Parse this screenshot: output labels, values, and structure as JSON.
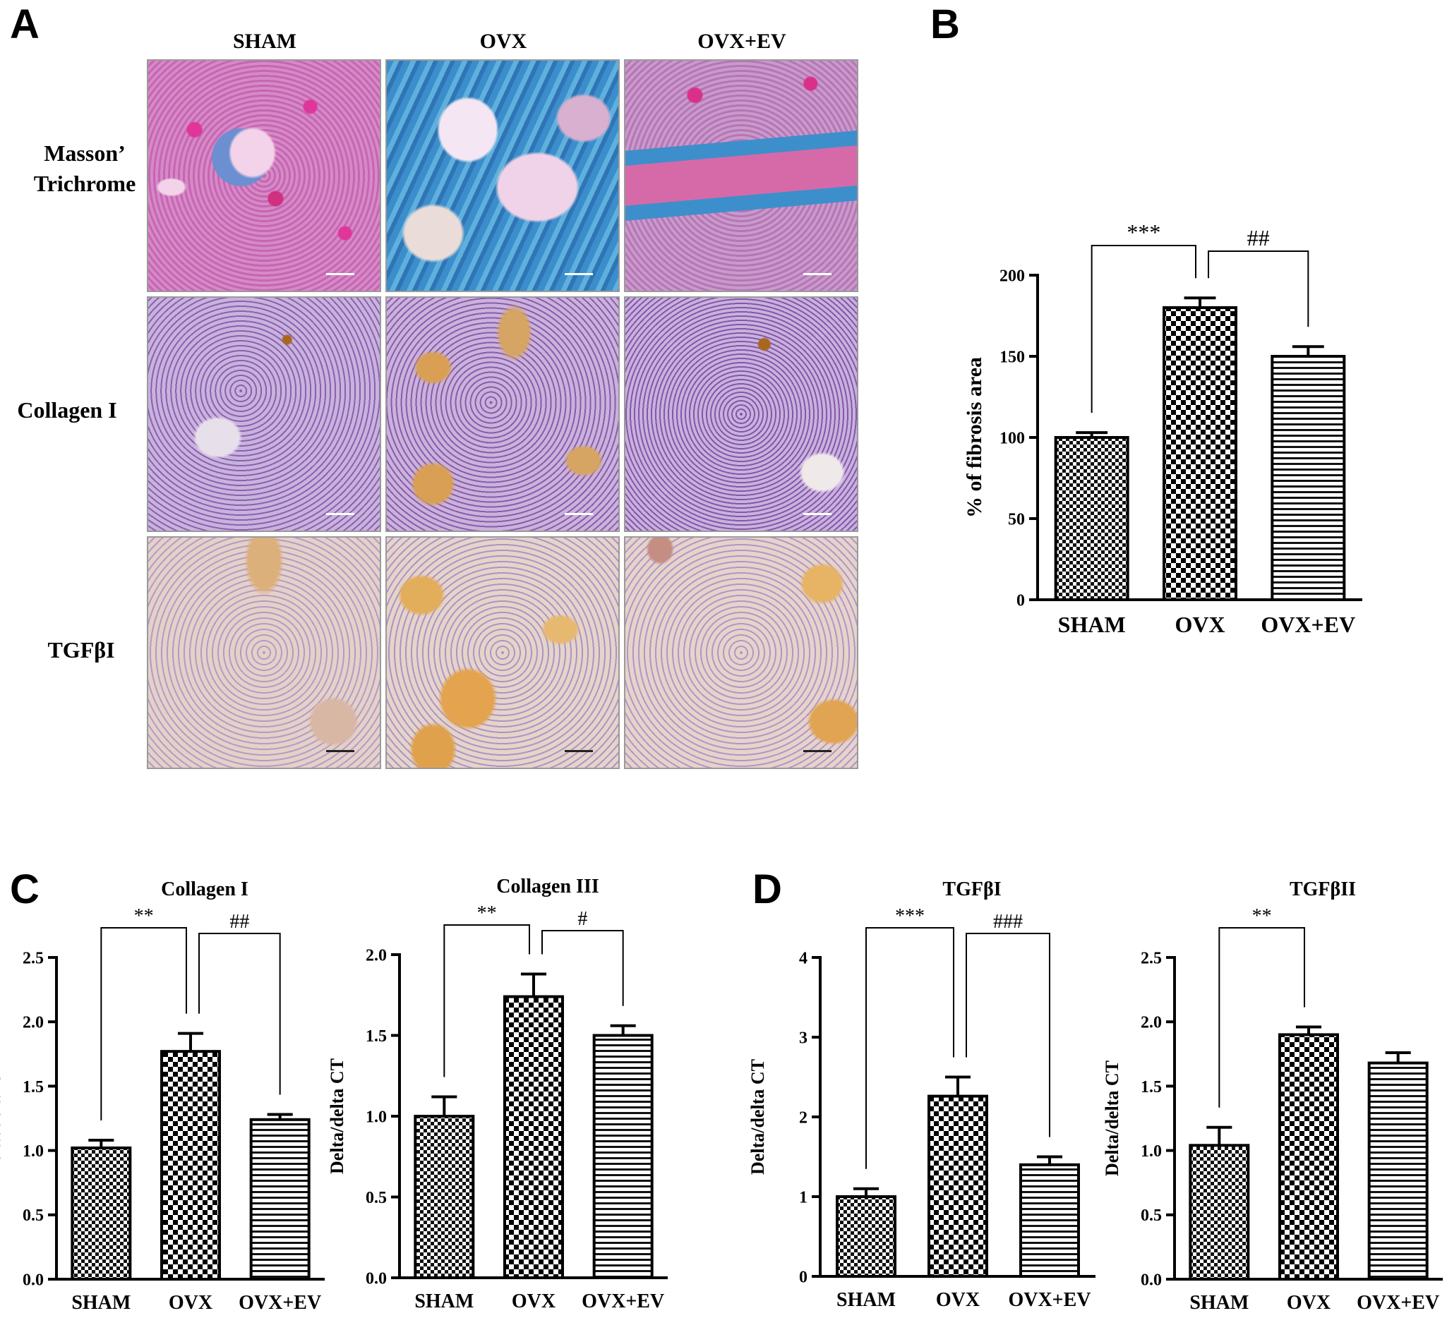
{
  "panel_letters": {
    "a": "A",
    "b": "B",
    "c": "C",
    "d": "D"
  },
  "panel_a": {
    "columns": [
      "SHAM",
      "OVX",
      "OVX+EV"
    ],
    "rows": [
      {
        "label_lines": [
          "Masson’",
          "Trichrome"
        ]
      },
      {
        "label_lines": [
          "Collagen I"
        ]
      },
      {
        "label_lines": [
          "TGFβI"
        ]
      }
    ],
    "stain_colors": {
      "trichrome_pink": "#d06aa8",
      "trichrome_blue": "#3a8fc8",
      "hematoxylin_purple": "#8a5fb0",
      "dab_brown": "#d9a84e",
      "background_tissue": "#c9b8dd"
    }
  },
  "chart_data": [
    {
      "id": "B",
      "type": "bar",
      "categories": [
        "SHAM",
        "OVX",
        "OVX+EV"
      ],
      "values": [
        100,
        180,
        150
      ],
      "errors": [
        3,
        6,
        6
      ],
      "patterns": [
        "checker-small",
        "checker",
        "hlines"
      ],
      "title": "",
      "xlabel": "",
      "ylabel": "% of fibrosis area",
      "ylim": [
        0,
        200
      ],
      "yticks": [
        "0",
        "50",
        "100",
        "150",
        "200"
      ],
      "brackets": [
        {
          "from": 0,
          "to": 1,
          "label": "***"
        },
        {
          "from": 1,
          "to": 2,
          "label": "##"
        }
      ]
    },
    {
      "id": "C1",
      "type": "bar",
      "categories": [
        "SHAM",
        "OVX",
        "OVX+EV"
      ],
      "values": [
        1.02,
        1.77,
        1.24
      ],
      "errors": [
        0.06,
        0.14,
        0.04
      ],
      "patterns": [
        "checker-small",
        "checker",
        "hlines"
      ],
      "title": "Collagen I",
      "xlabel": "",
      "ylabel": "Delta/delta CT",
      "ylim": [
        0,
        2.5
      ],
      "yticks": [
        "0.0",
        "0.5",
        "1.0",
        "1.5",
        "2.0",
        "2.5"
      ],
      "brackets": [
        {
          "from": 0,
          "to": 1,
          "label": "**"
        },
        {
          "from": 1,
          "to": 2,
          "label": "##"
        }
      ]
    },
    {
      "id": "C2",
      "type": "bar",
      "categories": [
        "SHAM",
        "OVX",
        "OVX+EV"
      ],
      "values": [
        1.0,
        1.74,
        1.5
      ],
      "errors": [
        0.12,
        0.14,
        0.06
      ],
      "patterns": [
        "checker-small",
        "checker",
        "hlines"
      ],
      "title": "Collagen III",
      "xlabel": "",
      "ylabel": "Delta/delta CT",
      "ylim": [
        0,
        2.0
      ],
      "yticks": [
        "0.0",
        "0.5",
        "1.0",
        "1.5",
        "2.0"
      ],
      "brackets": [
        {
          "from": 0,
          "to": 1,
          "label": "**"
        },
        {
          "from": 1,
          "to": 2,
          "label": "#"
        }
      ]
    },
    {
      "id": "D1",
      "type": "bar",
      "categories": [
        "SHAM",
        "OVX",
        "OVX+EV"
      ],
      "values": [
        1.0,
        2.26,
        1.4
      ],
      "errors": [
        0.1,
        0.24,
        0.1
      ],
      "patterns": [
        "checker-small",
        "checker",
        "hlines"
      ],
      "title": "TGFβI",
      "xlabel": "",
      "ylabel": "Delta/delta CT",
      "ylim": [
        0,
        4
      ],
      "yticks": [
        "0",
        "1",
        "2",
        "3",
        "4"
      ],
      "brackets": [
        {
          "from": 0,
          "to": 1,
          "label": "***"
        },
        {
          "from": 1,
          "to": 2,
          "label": "###"
        }
      ]
    },
    {
      "id": "D2",
      "type": "bar",
      "categories": [
        "SHAM",
        "OVX",
        "OVX+EV"
      ],
      "values": [
        1.04,
        1.9,
        1.68
      ],
      "errors": [
        0.14,
        0.06,
        0.08
      ],
      "patterns": [
        "checker-small",
        "checker",
        "hlines"
      ],
      "title": "TGFβII",
      "xlabel": "",
      "ylabel": "Delta/delta CT",
      "ylim": [
        0,
        2.5
      ],
      "yticks": [
        "0.0",
        "0.5",
        "1.0",
        "1.5",
        "2.0",
        "2.5"
      ],
      "brackets": [
        {
          "from": 0,
          "to": 1,
          "label": "**"
        }
      ]
    }
  ]
}
